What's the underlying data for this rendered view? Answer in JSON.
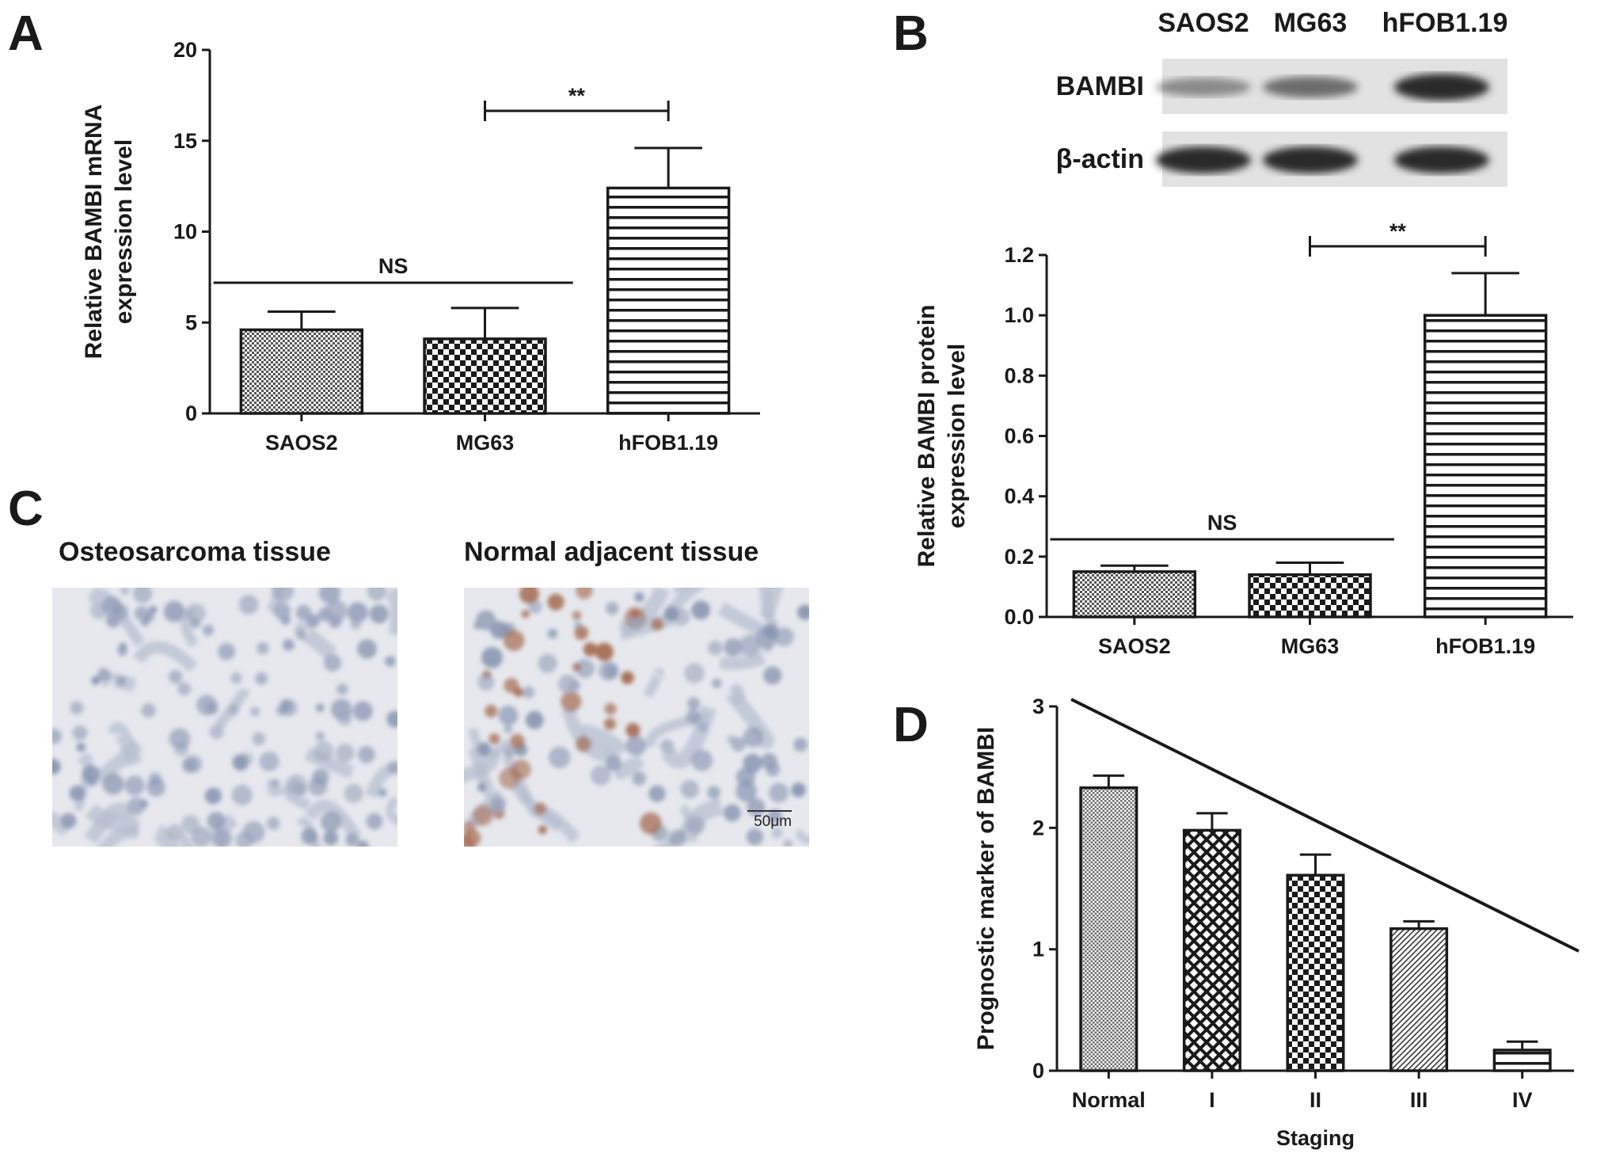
{
  "panels": {
    "A": "A",
    "B": "B",
    "C": "C",
    "D": "D"
  },
  "colors": {
    "ink": "#1a1a1a",
    "blot_band": "#2a2a2a",
    "blot_bg": "#e2e2e2",
    "ihc_blue": "#8896b0",
    "ihc_brown": "#a56a50",
    "tissue_bg": "#e6e8ee"
  },
  "chart_data": [
    {
      "id": "A",
      "type": "bar",
      "categories": [
        "SAOS2",
        "MG63",
        "hFOB1.19"
      ],
      "values": [
        4.6,
        4.1,
        12.4
      ],
      "errors": [
        1.0,
        1.7,
        2.2
      ],
      "patterns": [
        "dots",
        "checker",
        "hstripes"
      ],
      "ylabel": [
        "Relative BAMBI mRNA",
        "expression level"
      ],
      "ylim": [
        0,
        20
      ],
      "yticks": [
        0,
        5,
        10,
        15,
        20
      ],
      "yticklabels": [
        "0",
        "5",
        "10",
        "15",
        "20"
      ],
      "annotations": [
        {
          "text": "**",
          "type": "bracket",
          "from": 1,
          "to": 2
        },
        {
          "text": "NS",
          "type": "line",
          "from": 0,
          "to": 1
        }
      ]
    },
    {
      "id": "B",
      "type": "bar",
      "categories": [
        "SAOS2",
        "MG63",
        "hFOB1.19"
      ],
      "values": [
        0.15,
        0.14,
        1.0
      ],
      "errors": [
        0.02,
        0.04,
        0.14
      ],
      "patterns": [
        "dots",
        "checker",
        "hstripes"
      ],
      "ylabel": [
        "Relative BAMBI protein",
        "expression level"
      ],
      "ylim": [
        0,
        1.2
      ],
      "yticks": [
        0,
        0.2,
        0.4,
        0.6,
        0.8,
        1.0,
        1.2
      ],
      "yticklabels": [
        "0.0",
        "0.2",
        "0.4",
        "0.6",
        "0.8",
        "1.0",
        "1.2"
      ],
      "annotations": [
        {
          "text": "**",
          "type": "bracket",
          "from": 1,
          "to": 2
        },
        {
          "text": "NS",
          "type": "line",
          "from": 0,
          "to": 1
        }
      ]
    },
    {
      "id": "D",
      "type": "bar",
      "categories": [
        "Normal",
        "I",
        "II",
        "III",
        "IV"
      ],
      "values": [
        2.33,
        1.98,
        1.61,
        1.17,
        0.17
      ],
      "errors": [
        0.1,
        0.14,
        0.17,
        0.06,
        0.07
      ],
      "patterns": [
        "fine",
        "crosshatch",
        "checker",
        "diag",
        "hstripes"
      ],
      "xlabel": "Staging",
      "ylabel": [
        "Prognostic marker of BAMBI"
      ],
      "ylim": [
        0,
        3
      ],
      "yticks": [
        0,
        1,
        2,
        3
      ],
      "yticklabels": [
        "0",
        "1",
        "2",
        "3"
      ],
      "trend_line": true
    }
  ],
  "blot": {
    "lanes": [
      "SAOS2",
      "MG63",
      "hFOB1.19"
    ],
    "rows": [
      {
        "label": "BAMBI",
        "intensities": [
          0.35,
          0.55,
          1.0
        ]
      },
      {
        "label": "β-actin",
        "intensities": [
          1.0,
          1.0,
          1.0
        ]
      }
    ]
  },
  "tissue": {
    "left_label": "Osteosarcoma tissue",
    "right_label": "Normal adjacent tissue",
    "scale": "50μm"
  }
}
